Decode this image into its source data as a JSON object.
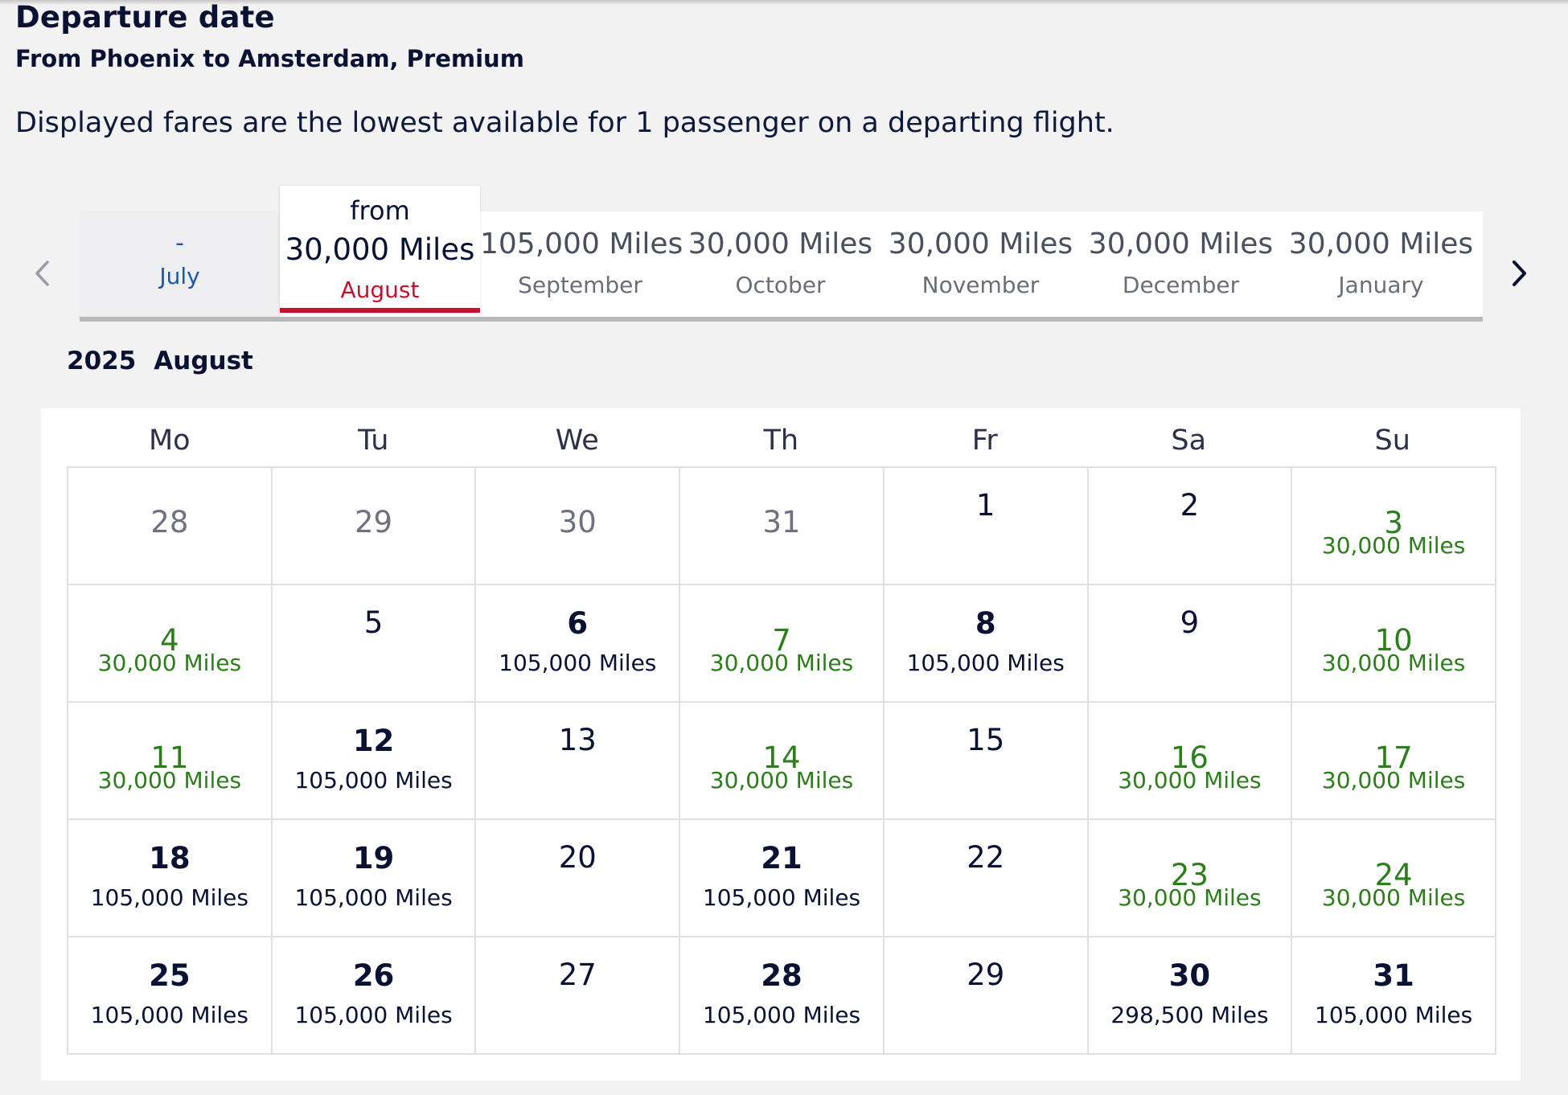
{
  "header": {
    "title": "Departure date",
    "subtitle": "From Phoenix to Amsterdam, Premium",
    "notice": "Displayed fares are the lowest available for 1 passenger on a departing flight."
  },
  "month_strip": {
    "tabs": [
      {
        "price": "-",
        "month": "July"
      },
      {
        "from": "from",
        "price": "30,000 Miles",
        "month": "August"
      },
      {
        "price": "105,000 Miles",
        "month": "September"
      },
      {
        "price": "30,000 Miles",
        "month": "October"
      },
      {
        "price": "30,000 Miles",
        "month": "November"
      },
      {
        "price": "30,000 Miles",
        "month": "December"
      },
      {
        "price": "30,000 Miles",
        "month": "January"
      }
    ],
    "selected": "August",
    "prev_icon": "chevron-left-icon",
    "next_icon": "chevron-right-icon"
  },
  "calendar": {
    "year": "2025",
    "month": "August",
    "weekdays": [
      "Mo",
      "Tu",
      "We",
      "Th",
      "Fr",
      "Sa",
      "Su"
    ],
    "colors": {
      "lowest_fare": "#2d7d1d",
      "selected": "#c8102e"
    },
    "days": [
      {
        "day": "28",
        "miles": "",
        "type": "prev"
      },
      {
        "day": "29",
        "miles": "",
        "type": "prev"
      },
      {
        "day": "30",
        "miles": "",
        "type": "prev"
      },
      {
        "day": "31",
        "miles": "",
        "type": "prev"
      },
      {
        "day": "1",
        "miles": "",
        "type": "nofare"
      },
      {
        "day": "2",
        "miles": "",
        "type": "nofare"
      },
      {
        "day": "3",
        "miles": "30,000 Miles",
        "type": "green"
      },
      {
        "day": "4",
        "miles": "30,000 Miles",
        "type": "green"
      },
      {
        "day": "5",
        "miles": "",
        "type": "nofare"
      },
      {
        "day": "6",
        "miles": "105,000 Miles",
        "type": "fare"
      },
      {
        "day": "7",
        "miles": "30,000 Miles",
        "type": "green"
      },
      {
        "day": "8",
        "miles": "105,000 Miles",
        "type": "fare"
      },
      {
        "day": "9",
        "miles": "",
        "type": "nofare"
      },
      {
        "day": "10",
        "miles": "30,000 Miles",
        "type": "green"
      },
      {
        "day": "11",
        "miles": "30,000 Miles",
        "type": "green"
      },
      {
        "day": "12",
        "miles": "105,000 Miles",
        "type": "fare"
      },
      {
        "day": "13",
        "miles": "",
        "type": "nofare"
      },
      {
        "day": "14",
        "miles": "30,000 Miles",
        "type": "green"
      },
      {
        "day": "15",
        "miles": "",
        "type": "nofare"
      },
      {
        "day": "16",
        "miles": "30,000 Miles",
        "type": "green"
      },
      {
        "day": "17",
        "miles": "30,000 Miles",
        "type": "green"
      },
      {
        "day": "18",
        "miles": "105,000 Miles",
        "type": "fare"
      },
      {
        "day": "19",
        "miles": "105,000 Miles",
        "type": "fare"
      },
      {
        "day": "20",
        "miles": "",
        "type": "nofare"
      },
      {
        "day": "21",
        "miles": "105,000 Miles",
        "type": "fare"
      },
      {
        "day": "22",
        "miles": "",
        "type": "nofare"
      },
      {
        "day": "23",
        "miles": "30,000 Miles",
        "type": "green"
      },
      {
        "day": "24",
        "miles": "30,000 Miles",
        "type": "green"
      },
      {
        "day": "25",
        "miles": "105,000 Miles",
        "type": "fare"
      },
      {
        "day": "26",
        "miles": "105,000 Miles",
        "type": "fare"
      },
      {
        "day": "27",
        "miles": "",
        "type": "nofare"
      },
      {
        "day": "28",
        "miles": "105,000 Miles",
        "type": "fare"
      },
      {
        "day": "29",
        "miles": "",
        "type": "nofare"
      },
      {
        "day": "30",
        "miles": "298,500 Miles",
        "type": "fare"
      },
      {
        "day": "31",
        "miles": "105,000 Miles",
        "type": "fare"
      }
    ]
  }
}
